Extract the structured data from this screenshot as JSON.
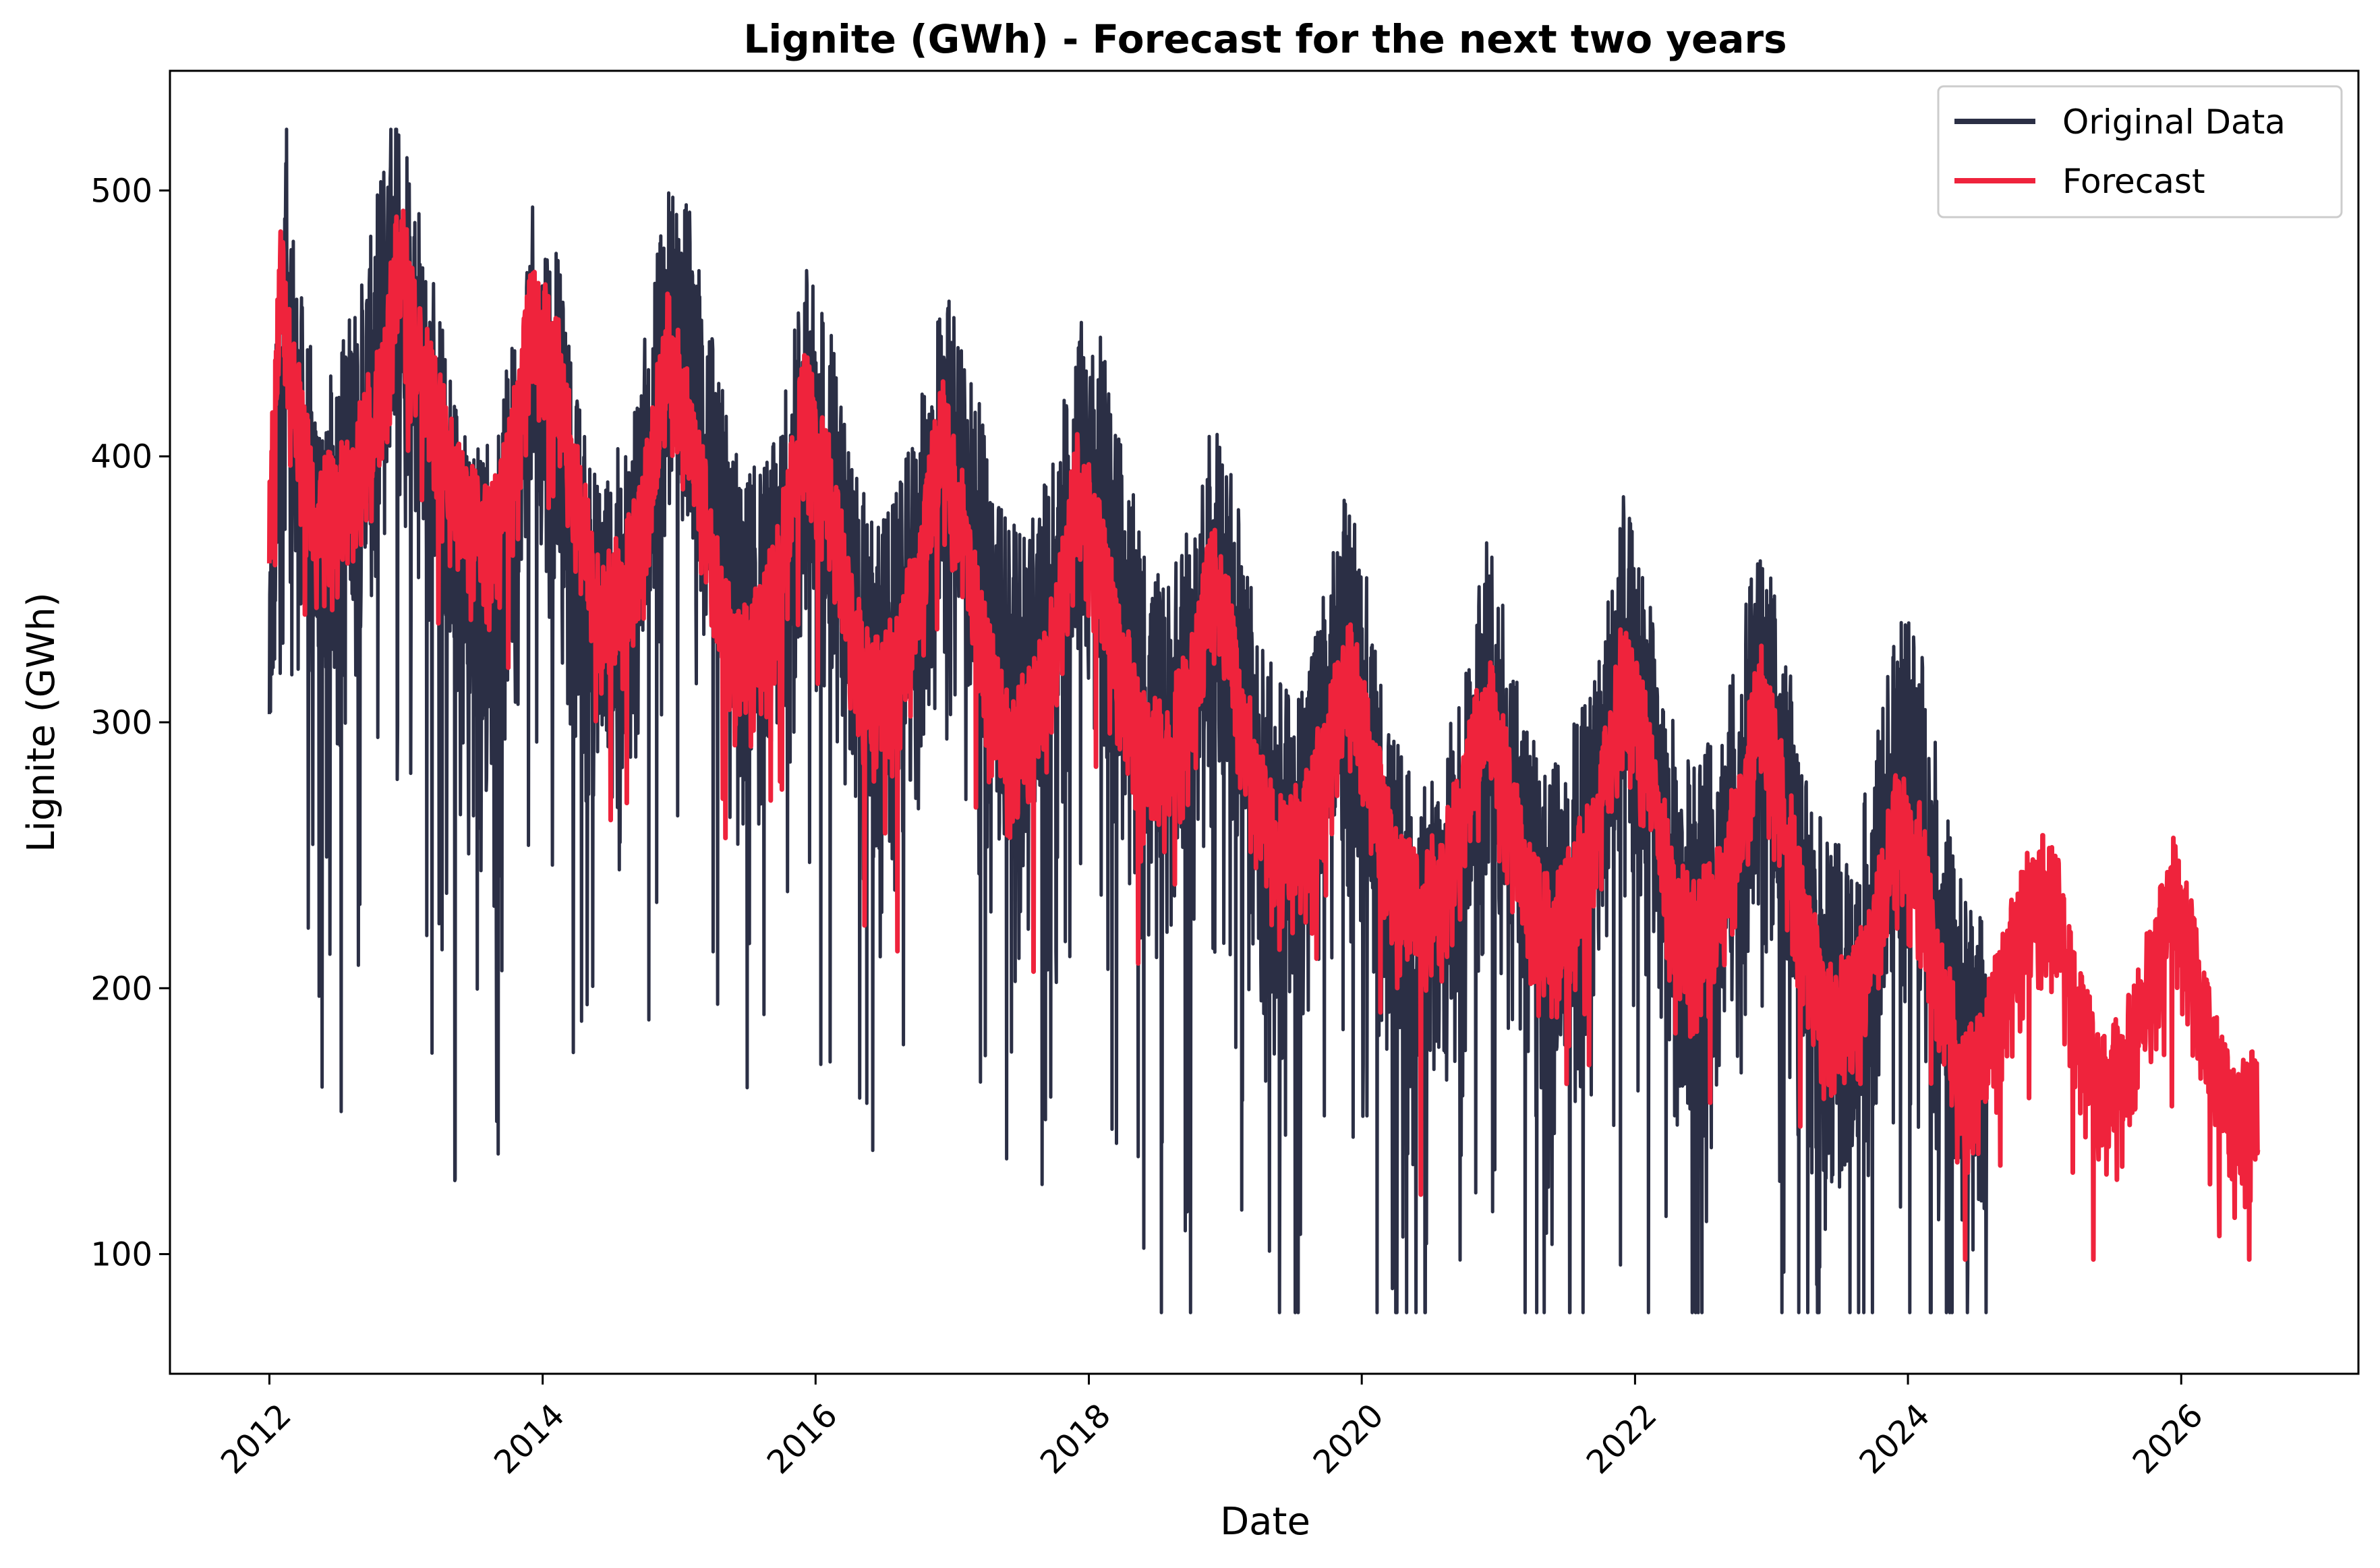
{
  "chart_data": {
    "type": "line",
    "title": "Lignite (GWh) - Forecast for the next two years",
    "xlabel": "Date",
    "ylabel": "Lignite (GWh)",
    "xlim": [
      "2011-04-10",
      "2027-04-20"
    ],
    "ylim": [
      55,
      545
    ],
    "x_ticks": [
      "2012",
      "2014",
      "2016",
      "2018",
      "2020",
      "2022",
      "2024",
      "2026"
    ],
    "y_ticks": [
      100,
      200,
      300,
      400,
      500
    ],
    "grid": false,
    "legend": "top-right",
    "colors": {
      "original": "#2b2f45",
      "forecast": "#ef233c"
    },
    "series": [
      {
        "name": "Original Data",
        "x": [
          "2012-01-01",
          "2012-02-15",
          "2012-03-01",
          "2012-04-01",
          "2012-05-01",
          "2012-06-01",
          "2012-07-01",
          "2012-08-01",
          "2012-09-01",
          "2012-10-01",
          "2012-11-01",
          "2012-12-01",
          "2013-01-01",
          "2013-02-01",
          "2013-04-01",
          "2013-06-01",
          "2013-08-01",
          "2013-10-01",
          "2013-12-01",
          "2014-02-01",
          "2014-04-01",
          "2014-06-01",
          "2014-08-01",
          "2014-10-01",
          "2014-12-01",
          "2015-02-01",
          "2015-04-01",
          "2015-06-01",
          "2015-08-01",
          "2015-10-01",
          "2015-12-01",
          "2016-02-01",
          "2016-04-01",
          "2016-06-01",
          "2016-08-01",
          "2016-10-01",
          "2016-12-01",
          "2017-02-01",
          "2017-04-01",
          "2017-06-01",
          "2017-08-01",
          "2017-10-01",
          "2017-12-01",
          "2018-02-01",
          "2018-04-01",
          "2018-06-01",
          "2018-08-01",
          "2018-10-01",
          "2018-12-01",
          "2019-02-01",
          "2019-04-01",
          "2019-06-01",
          "2019-08-01",
          "2019-10-01",
          "2019-12-01",
          "2020-02-01",
          "2020-04-01",
          "2020-06-01",
          "2020-08-01",
          "2020-10-01",
          "2020-12-01",
          "2021-02-01",
          "2021-04-01",
          "2021-06-01",
          "2021-08-01",
          "2021-10-01",
          "2021-12-01",
          "2022-02-01",
          "2022-04-01",
          "2022-06-01",
          "2022-08-01",
          "2022-10-01",
          "2022-12-01",
          "2023-02-01",
          "2023-04-01",
          "2023-06-01",
          "2023-08-01",
          "2023-10-01",
          "2023-12-01",
          "2024-02-01",
          "2024-04-01",
          "2024-06-01",
          "2024-08-01"
        ],
        "y": [
          330,
          480,
          440,
          400,
          380,
          370,
          385,
          400,
          410,
          430,
          460,
          490,
          470,
          450,
          400,
          360,
          350,
          380,
          440,
          430,
          370,
          340,
          350,
          390,
          450,
          440,
          390,
          350,
          340,
          360,
          420,
          400,
          350,
          320,
          330,
          360,
          410,
          400,
          350,
          320,
          320,
          350,
          400,
          390,
          350,
          310,
          300,
          320,
          370,
          330,
          280,
          260,
          270,
          300,
          340,
          290,
          240,
          220,
          230,
          270,
          320,
          290,
          240,
          230,
          250,
          280,
          330,
          300,
          250,
          230,
          240,
          270,
          320,
          280,
          230,
          200,
          200,
          230,
          290,
          280,
          220,
          180,
          170
        ],
        "range_min": 78,
        "range_max": 523
      },
      {
        "name": "Forecast",
        "x": [
          "2012-01-01",
          "2012-02-01",
          "2012-03-01",
          "2012-05-01",
          "2012-07-01",
          "2012-09-01",
          "2012-11-01",
          "2012-12-15",
          "2013-02-01",
          "2013-04-01",
          "2013-06-01",
          "2013-08-01",
          "2013-10-01",
          "2013-12-01",
          "2014-02-01",
          "2014-04-01",
          "2014-06-01",
          "2014-08-01",
          "2014-10-01",
          "2014-12-01",
          "2015-02-01",
          "2015-04-01",
          "2015-06-01",
          "2015-08-01",
          "2015-10-01",
          "2015-12-01",
          "2016-02-01",
          "2016-04-01",
          "2016-06-01",
          "2016-08-01",
          "2016-10-01",
          "2016-12-01",
          "2017-02-01",
          "2017-04-01",
          "2017-06-01",
          "2017-08-01",
          "2017-10-01",
          "2017-12-01",
          "2018-02-01",
          "2018-04-01",
          "2018-06-01",
          "2018-08-01",
          "2018-10-01",
          "2018-12-01",
          "2019-02-01",
          "2019-04-01",
          "2019-06-01",
          "2019-08-01",
          "2019-10-01",
          "2019-12-01",
          "2020-02-01",
          "2020-04-01",
          "2020-06-01",
          "2020-08-01",
          "2020-10-01",
          "2020-12-01",
          "2021-02-01",
          "2021-04-01",
          "2021-06-01",
          "2021-08-01",
          "2021-10-01",
          "2021-12-01",
          "2022-02-01",
          "2022-04-01",
          "2022-06-01",
          "2022-08-01",
          "2022-10-01",
          "2022-12-01",
          "2023-02-01",
          "2023-04-01",
          "2023-06-01",
          "2023-08-01",
          "2023-10-01",
          "2023-12-01",
          "2024-02-01",
          "2024-04-01",
          "2024-06-01",
          "2024-08-01",
          "2024-10-01",
          "2024-12-01",
          "2025-02-01",
          "2025-04-01",
          "2025-06-01",
          "2025-08-01",
          "2025-10-01",
          "2025-12-01",
          "2026-02-01",
          "2026-04-01",
          "2026-06-01",
          "2026-07-25"
        ],
        "y": [
          370,
          470,
          430,
          380,
          380,
          400,
          430,
          480,
          440,
          410,
          380,
          370,
          390,
          450,
          440,
          390,
          340,
          350,
          380,
          440,
          410,
          360,
          320,
          330,
          360,
          420,
          390,
          340,
          310,
          320,
          350,
          410,
          370,
          320,
          290,
          300,
          330,
          390,
          360,
          320,
          290,
          290,
          310,
          360,
          320,
          270,
          250,
          260,
          290,
          320,
          280,
          240,
          230,
          240,
          270,
          310,
          270,
          230,
          220,
          240,
          270,
          320,
          290,
          240,
          220,
          230,
          260,
          310,
          270,
          220,
          190,
          190,
          220,
          260,
          250,
          200,
          160,
          180,
          210,
          240,
          230,
          190,
          160,
          170,
          200,
          240,
          210,
          170,
          150,
          160
        ],
        "range_min": 98,
        "range_max": 500
      }
    ]
  }
}
